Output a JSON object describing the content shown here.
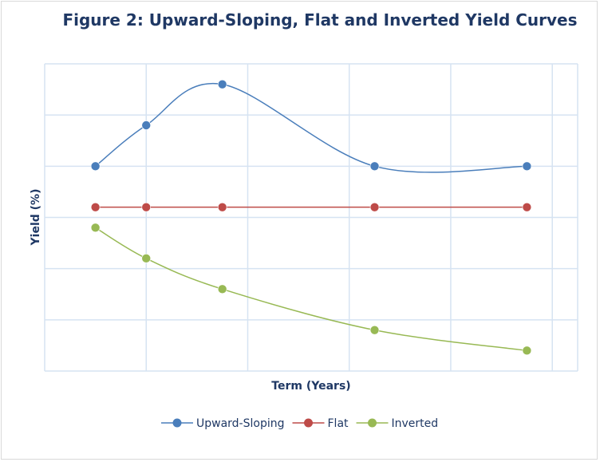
{
  "chart_data": {
    "type": "line",
    "title": "Figure 2: Upward-Sloping, Flat and Inverted Yield Curves",
    "xlabel": "Term (Years)",
    "ylabel": "Yield (%)",
    "x_points": 5,
    "x": [
      1,
      2,
      3.5,
      6.5,
      9.5
    ],
    "xlim": [
      0,
      10.5
    ],
    "ylim": [
      0,
      6
    ],
    "grid": true,
    "tick_labels_shown": false,
    "legend_position": "bottom",
    "smooth": true,
    "series": [
      {
        "name": "Upward-Sloping",
        "color": "#4a7ebb",
        "values": [
          4.0,
          4.8,
          5.6,
          4.0,
          4.0
        ]
      },
      {
        "name": "Flat",
        "color": "#be4b48",
        "values": [
          3.2,
          3.2,
          3.2,
          3.2,
          3.2
        ]
      },
      {
        "name": "Inverted",
        "color": "#98b954",
        "values": [
          2.8,
          2.2,
          1.6,
          0.8,
          0.4
        ]
      }
    ]
  }
}
